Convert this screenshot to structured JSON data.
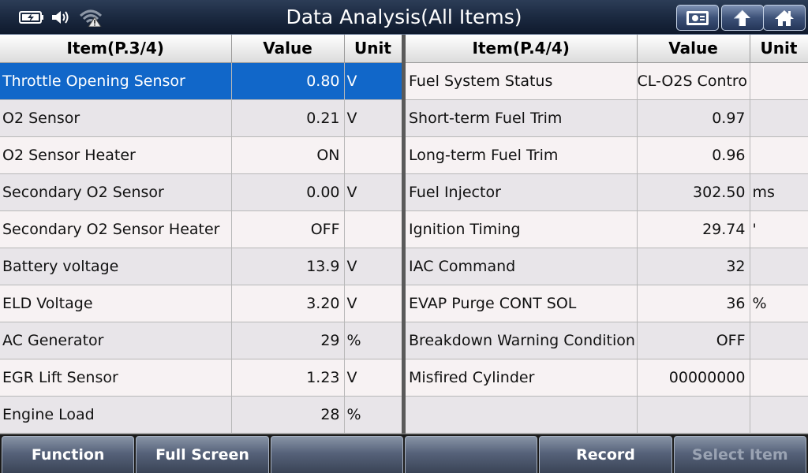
{
  "header": {
    "title": "Data Analysis(All Items)",
    "buttons": [
      "screenshot-icon",
      "back-icon",
      "home-icon"
    ],
    "status_icons": [
      "battery-icon",
      "speaker-icon",
      "wifi-icon"
    ]
  },
  "left_table": {
    "headers": {
      "item": "Item(P.3/4)",
      "value": "Value",
      "unit": "Unit"
    },
    "rows": [
      {
        "item": "Throttle Opening Sensor",
        "value": "0.80",
        "unit": "V",
        "selected": true
      },
      {
        "item": "O2 Sensor",
        "value": "0.21",
        "unit": "V"
      },
      {
        "item": "O2 Sensor Heater",
        "value": "ON",
        "unit": ""
      },
      {
        "item": "Secondary O2 Sensor",
        "value": "0.00",
        "unit": "V"
      },
      {
        "item": "Secondary O2 Sensor Heater",
        "value": "OFF",
        "unit": ""
      },
      {
        "item": "Battery voltage",
        "value": "13.9",
        "unit": "V"
      },
      {
        "item": "ELD Voltage",
        "value": "3.20",
        "unit": "V"
      },
      {
        "item": "AC Generator",
        "value": "29",
        "unit": "%"
      },
      {
        "item": "EGR Lift Sensor",
        "value": "1.23",
        "unit": "V"
      },
      {
        "item": "Engine Load",
        "value": "28",
        "unit": "%"
      }
    ]
  },
  "right_table": {
    "headers": {
      "item": "Item(P.4/4)",
      "value": "Value",
      "unit": "Unit"
    },
    "rows": [
      {
        "item": "Fuel System Status",
        "value": "CL-O2S Contro",
        "unit": ""
      },
      {
        "item": "Short-term Fuel Trim",
        "value": "0.97",
        "unit": ""
      },
      {
        "item": "Long-term Fuel Trim",
        "value": "0.96",
        "unit": ""
      },
      {
        "item": "Fuel Injector",
        "value": "302.50",
        "unit": "ms"
      },
      {
        "item": "Ignition Timing",
        "value": "29.74",
        "unit": "'"
      },
      {
        "item": "IAC Command",
        "value": "32",
        "unit": ""
      },
      {
        "item": "EVAP Purge CONT SOL",
        "value": "36",
        "unit": "%"
      },
      {
        "item": "Breakdown Warning Condition",
        "value": "OFF",
        "unit": ""
      },
      {
        "item": "Misfired Cylinder",
        "value": "00000000",
        "unit": ""
      },
      {
        "item": "",
        "value": "",
        "unit": ""
      }
    ]
  },
  "bottom_bar": {
    "buttons": [
      {
        "label": "Function",
        "enabled": true
      },
      {
        "label": "Full Screen",
        "enabled": true
      },
      {
        "label": "",
        "enabled": true
      },
      {
        "label": "",
        "enabled": true
      },
      {
        "label": "Record",
        "enabled": true
      },
      {
        "label": "Select Item",
        "enabled": false
      }
    ]
  },
  "colors": {
    "selected_row": "#1167c9",
    "row_odd": "#f7f2f3",
    "row_even": "#e8e5e9",
    "header_bg": "#1b2940"
  }
}
